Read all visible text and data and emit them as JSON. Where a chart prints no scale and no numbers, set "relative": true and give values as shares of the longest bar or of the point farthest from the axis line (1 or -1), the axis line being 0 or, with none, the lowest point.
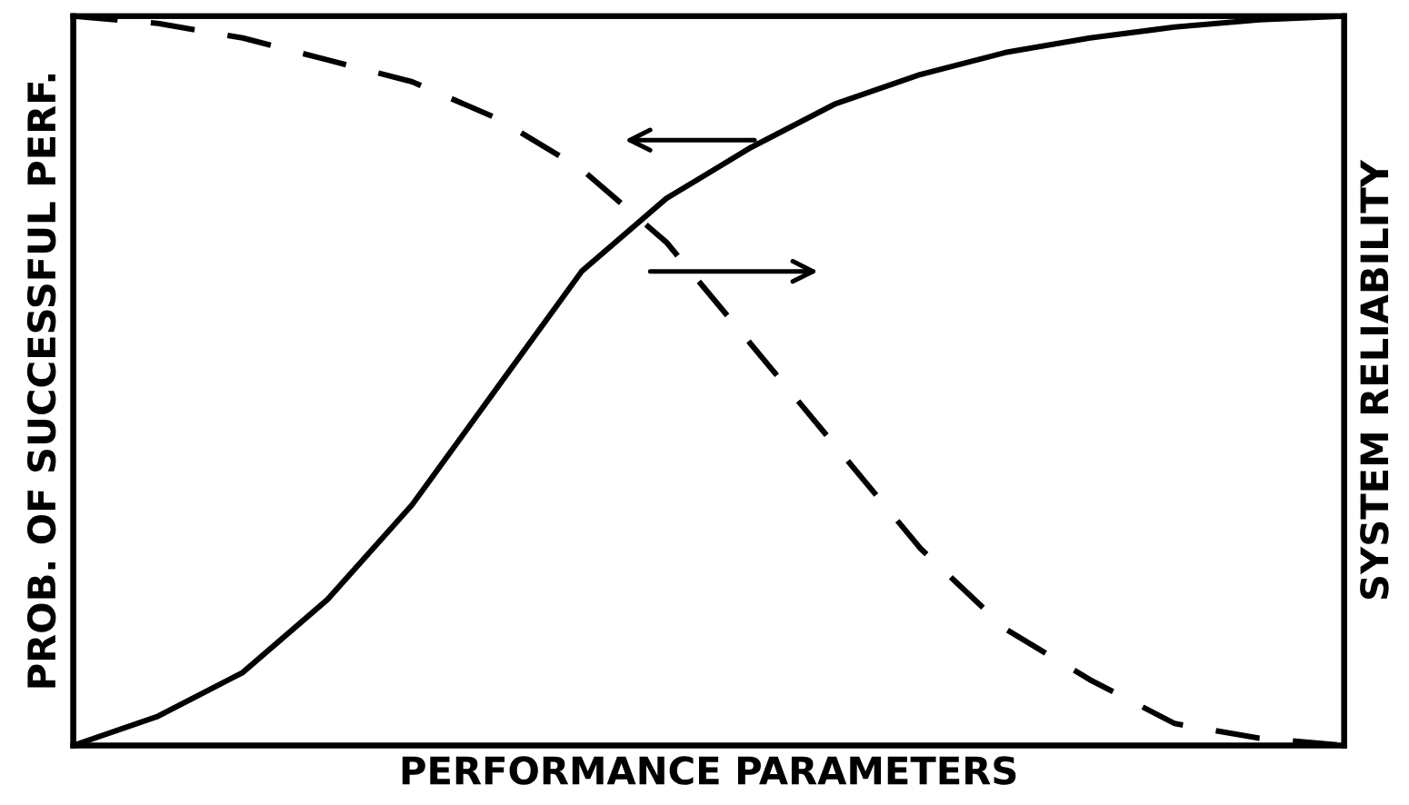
{
  "chart_data": {
    "type": "line",
    "relative": true,
    "xlabel": "PERFORMANCE PARAMETERS",
    "ylabel": "PROB. OF SUCCESSFUL PERF.",
    "y2label": "SYSTEM RELIABILITY",
    "categories": [
      null,
      null,
      null,
      null,
      null,
      null,
      null,
      null,
      null,
      null,
      null,
      null,
      null,
      null,
      null,
      null
    ],
    "series": [
      {
        "color": "#000000",
        "line_style": "solid",
        "values": [
          0,
          0.04,
          0.1,
          0.2,
          0.33,
          0.49,
          0.65,
          0.75,
          0.82,
          0.88,
          0.92,
          0.95,
          0.97,
          0.985,
          0.995,
          1
        ]
      },
      {
        "color": "#000000",
        "line_style": "dashed",
        "values": [
          1,
          0.99,
          0.97,
          0.94,
          0.91,
          0.86,
          0.79,
          0.69,
          0.55,
          0.41,
          0.27,
          0.16,
          0.09,
          0.03,
          0.01,
          0
        ]
      }
    ],
    "grid": false,
    "legend": false,
    "marker": "none"
  }
}
